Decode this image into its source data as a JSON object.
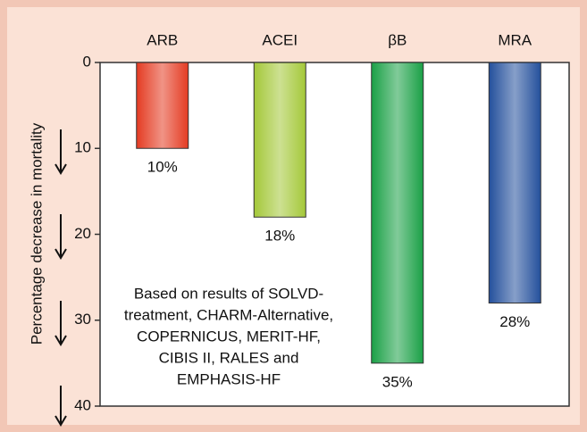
{
  "chart_data": {
    "type": "bar",
    "y_label": "Percentage decrease in mortality",
    "categories": [
      "ARB",
      "ACEI",
      "βB",
      "MRA"
    ],
    "values": [
      10,
      18,
      35,
      28
    ],
    "value_labels": [
      "10%",
      "18%",
      "35%",
      "28%"
    ],
    "colors": [
      "#e43b22",
      "#a4c839",
      "#1aa046",
      "#24509c"
    ],
    "ylim": [
      0,
      40
    ],
    "yticks": [
      0,
      10,
      20,
      30,
      40
    ],
    "inverted": true,
    "annotation": [
      "Based on results of SOLVD-",
      "treatment, CHARM-Alternative,",
      "COPERNICUS, MERIT-HF,",
      "CIBIS II, RALES and",
      "EMPHASIS-HF"
    ]
  }
}
